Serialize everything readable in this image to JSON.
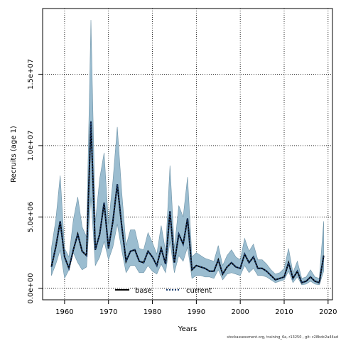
{
  "chart_data": {
    "type": "line",
    "xlabel": "Years",
    "ylabel": "Recruits (age 1)",
    "xlim": [
      1955,
      2021
    ],
    "ylim": [
      -800000,
      19600000
    ],
    "x_ticks": [
      1960,
      1970,
      1980,
      1990,
      2000,
      2010,
      2020
    ],
    "x_tick_labels": [
      "1960",
      "1970",
      "1980",
      "1990",
      "2000",
      "2010",
      "2020"
    ],
    "y_ticks": [
      0,
      5000000,
      10000000,
      15000000
    ],
    "y_tick_labels": [
      "0.0e+00",
      "5.0e+06",
      "1.0e+07",
      "1.5e+07"
    ],
    "grid": true,
    "legend_position": "bottom-center",
    "legend": [
      "base",
      "current"
    ],
    "colors": {
      "band": "#9bbdd0",
      "band_edge": "#6f94a8",
      "base": "#000000",
      "current": "#1a3c6e"
    },
    "x": [
      1957,
      1958,
      1959,
      1960,
      1961,
      1962,
      1963,
      1964,
      1965,
      1966,
      1967,
      1968,
      1969,
      1970,
      1971,
      1972,
      1973,
      1974,
      1975,
      1976,
      1977,
      1978,
      1979,
      1980,
      1981,
      1982,
      1983,
      1984,
      1985,
      1986,
      1987,
      1988,
      1989,
      1990,
      1991,
      1992,
      1993,
      1994,
      1995,
      1996,
      1997,
      1998,
      1999,
      2000,
      2001,
      2002,
      2003,
      2004,
      2005,
      2006,
      2007,
      2008,
      2009,
      2010,
      2011,
      2012,
      2013,
      2014,
      2015,
      2016,
      2017,
      2018,
      2019
    ],
    "series": [
      {
        "name": "base",
        "values": [
          1500000,
          2900000,
          4700000,
          2200000,
          1400000,
          2700000,
          3800000,
          2600000,
          2300000,
          11700000,
          2700000,
          3800000,
          6000000,
          2800000,
          4700000,
          7300000,
          4400000,
          1900000,
          2600000,
          2700000,
          1900000,
          1800000,
          2600000,
          2200000,
          1600000,
          2800000,
          1700000,
          5400000,
          1800000,
          3800000,
          3100000,
          4900000,
          1300000,
          1600000,
          1500000,
          1400000,
          1200000,
          1200000,
          2000000,
          1000000,
          1500000,
          1800000,
          1500000,
          1400000,
          2400000,
          1800000,
          2200000,
          1400000,
          1400000,
          1200000,
          900000,
          600000,
          700000,
          800000,
          1800000,
          700000,
          1200000,
          400000,
          500000,
          800000,
          500000,
          400000,
          2300000
        ]
      },
      {
        "name": "current",
        "values": [
          1500000,
          2900000,
          4700000,
          2200000,
          1400000,
          2700000,
          3800000,
          2600000,
          2300000,
          11700000,
          2700000,
          3800000,
          6000000,
          2800000,
          4700000,
          7300000,
          4400000,
          1900000,
          2600000,
          2700000,
          1900000,
          1800000,
          2600000,
          2200000,
          1600000,
          2800000,
          1700000,
          5400000,
          1800000,
          3800000,
          3100000,
          4900000,
          1300000,
          1600000,
          1500000,
          1400000,
          1200000,
          1200000,
          2000000,
          1000000,
          1500000,
          1800000,
          1500000,
          1400000,
          2400000,
          1800000,
          2200000,
          1400000,
          1400000,
          1200000,
          900000,
          600000,
          700000,
          800000,
          1800000,
          700000,
          1200000,
          400000,
          500000,
          800000,
          500000,
          400000,
          2300000
        ]
      }
    ],
    "band_lower": [
      900000,
      1700000,
      2700000,
      700000,
      1300000,
      2500000,
      1800000,
      1300000,
      1500000,
      6400000,
      1600000,
      2200000,
      3300000,
      2000000,
      2900000,
      4500000,
      2700000,
      1100000,
      1600000,
      1600000,
      1100000,
      1100000,
      1600000,
      1200000,
      1000000,
      1700000,
      1100000,
      3300000,
      1100000,
      2300000,
      1900000,
      2900000,
      700000,
      900000,
      900000,
      800000,
      800000,
      700000,
      1300000,
      600000,
      1000000,
      1100000,
      1000000,
      900000,
      1600000,
      1100000,
      1400000,
      900000,
      900000,
      800000,
      600000,
      400000,
      500000,
      600000,
      1200000,
      400000,
      800000,
      250000,
      300000,
      500000,
      300000,
      250000,
      1200000
    ],
    "band_upper": [
      2800000,
      4800000,
      7900000,
      2800000,
      2200000,
      4800000,
      6400000,
      4300000,
      3600000,
      18800000,
      4600000,
      7700000,
      9500000,
      4500000,
      7500000,
      11300000,
      6800000,
      3000000,
      4100000,
      4100000,
      2800000,
      2700000,
      3900000,
      3200000,
      2400000,
      4400000,
      2600000,
      8600000,
      2800000,
      5800000,
      5000000,
      7800000,
      2200000,
      2500000,
      2300000,
      2100000,
      2000000,
      1900000,
      3000000,
      1600000,
      2300000,
      2700000,
      2200000,
      2000000,
      3500000,
      2600000,
      3100000,
      2000000,
      2000000,
      1700000,
      1300000,
      1000000,
      1100000,
      1400000,
      2800000,
      1100000,
      1900000,
      700000,
      800000,
      1300000,
      800000,
      700000,
      4700000
    ]
  },
  "footer_text": "stockassessment.org, training_6a, r13250 , git: c28bdc2a44ad"
}
